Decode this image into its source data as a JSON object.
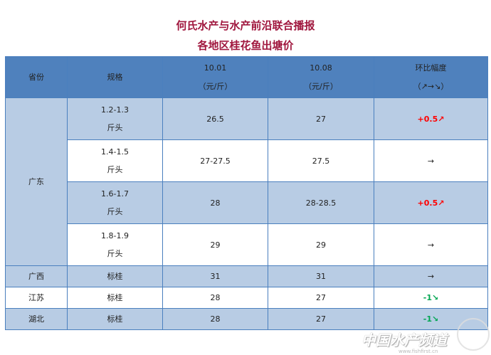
{
  "title": "何氏水产与水产前沿联合播报",
  "subtitle": "各地区桂花鱼出塘价",
  "headers": {
    "province": "省份",
    "spec": "规格",
    "d1": "10.01",
    "d1_unit": "（元/斤）",
    "d2": "10.08",
    "d2_unit": "（元/斤）",
    "change": "环比幅度",
    "change_legend": "（↗→↘）"
  },
  "rows": [
    {
      "province": "广东",
      "spec1": "1.2-1.3",
      "spec2": "斤头",
      "p1": "26.5",
      "p2": "27",
      "change": "+0.5↗",
      "trend": "up"
    },
    {
      "spec1": "1.4-1.5",
      "spec2": "斤头",
      "p1": "27-27.5",
      "p2": "27.5",
      "change": "→",
      "trend": "flat"
    },
    {
      "spec1": "1.6-1.7",
      "spec2": "斤头",
      "p1": "28",
      "p2": "28-28.5",
      "change": "+0.5↗",
      "trend": "up"
    },
    {
      "spec1": "1.8-1.9",
      "spec2": "斤头",
      "p1": "29",
      "p2": "29",
      "change": "→",
      "trend": "flat"
    },
    {
      "province": "广西",
      "spec1": "标桂",
      "p1": "31",
      "p2": "31",
      "change": "→",
      "trend": "flat"
    },
    {
      "province": "江苏",
      "spec1": "标桂",
      "p1": "28",
      "p2": "27",
      "change": "-1↘",
      "trend": "down"
    },
    {
      "province": "湖北",
      "spec1": "标桂",
      "p1": "28",
      "p2": "27",
      "change": "-1↘",
      "trend": "down"
    }
  ],
  "colors": {
    "header": "#4f81bd",
    "band": "#b8cce4",
    "up": "#ff0000",
    "down": "#00a651",
    "title": "#a0173e"
  },
  "watermark": {
    "text": "中国水产频道",
    "url": "www.fishfirst.cn"
  }
}
